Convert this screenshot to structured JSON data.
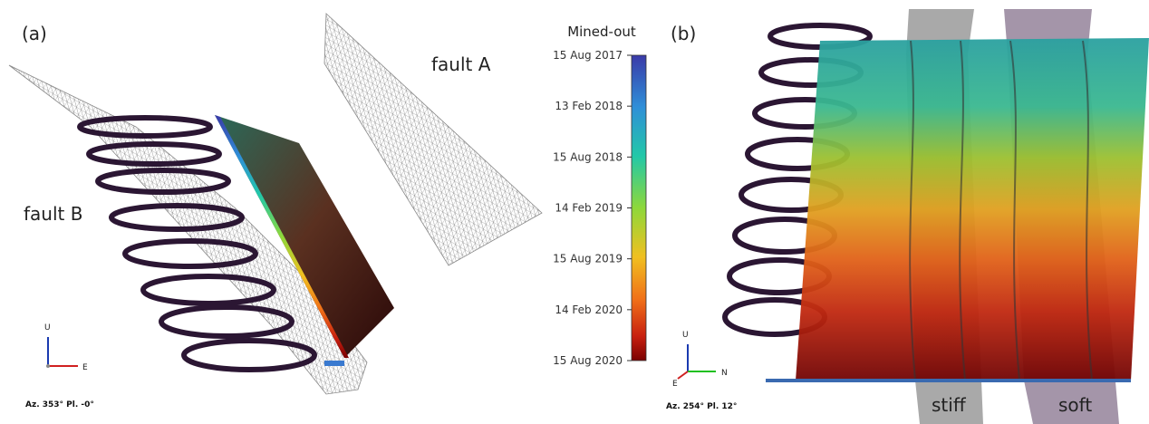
{
  "panel_a": {
    "label": "(a)",
    "fault_a": "fault A",
    "fault_b": "fault B",
    "axes": {
      "up": "U",
      "east": "E"
    },
    "orientation": "Az. 353° Pl. -0°"
  },
  "colorbar": {
    "title": "Mined-out",
    "ticks": [
      "15 Aug 2017",
      "13 Feb 2018",
      "15 Aug 2018",
      "14 Feb 2019",
      "15 Aug 2019",
      "14 Feb 2020",
      "15 Aug 2020"
    ]
  },
  "panel_b": {
    "label": "(b)",
    "axes": {
      "up": "U",
      "east": "E",
      "north": "N"
    },
    "orientation": "Az. 254° Pl. 12°",
    "stiff": "stiff",
    "soft": "soft"
  }
}
